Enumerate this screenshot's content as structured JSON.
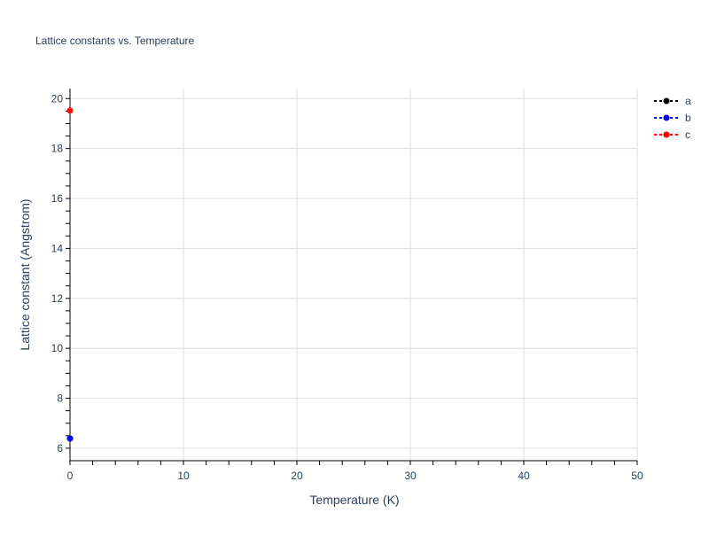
{
  "chart_data": {
    "type": "scatter",
    "mode": "lines+markers",
    "title": "Lattice constants vs. Temperature",
    "xlabel": "Temperature (K)",
    "ylabel": "Lattice constant (Angstrom)",
    "xlim": [
      0,
      50
    ],
    "ylim": [
      5.5,
      20.4
    ],
    "xticks": [
      0,
      10,
      20,
      30,
      40,
      50
    ],
    "yticks": [
      6,
      8,
      10,
      12,
      14,
      16,
      18,
      20
    ],
    "grid": true,
    "legend_position": "top-right",
    "series": [
      {
        "name": "a",
        "color": "#000000",
        "dash": "dot",
        "x": [
          0
        ],
        "y": [
          6.39
        ]
      },
      {
        "name": "b",
        "color": "#0000ff",
        "dash": "dot",
        "x": [
          0
        ],
        "y": [
          6.39
        ]
      },
      {
        "name": "c",
        "color": "#ff0000",
        "dash": "dot",
        "x": [
          0
        ],
        "y": [
          19.52
        ]
      }
    ]
  }
}
